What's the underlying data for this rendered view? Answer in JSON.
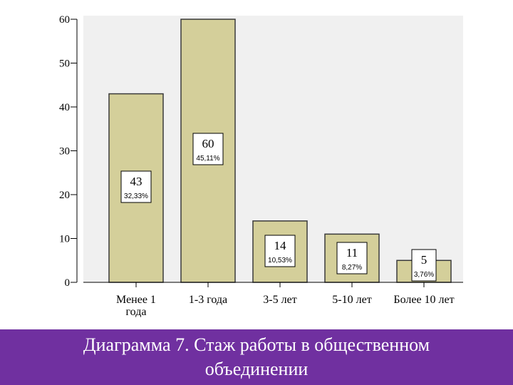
{
  "chart_data": {
    "type": "bar",
    "categories": [
      [
        "Менее 1",
        "года"
      ],
      [
        "1-3 года"
      ],
      [
        "3-5 лет"
      ],
      [
        "5-10 лет"
      ],
      [
        "Более 10 лет"
      ]
    ],
    "values": [
      43,
      60,
      14,
      11,
      5
    ],
    "data_labels": [
      "43",
      "60",
      "14",
      "11",
      "5"
    ],
    "percent_labels": [
      "32,33%",
      "45,11%",
      "10,53%",
      "8,27%",
      "3,76%"
    ],
    "yticks": [
      0,
      10,
      20,
      30,
      40,
      50,
      60
    ],
    "ylim": [
      0,
      60
    ],
    "grid": false,
    "colors": {
      "bar": "#d4cf9a",
      "bar_stroke": "#3a3a3a",
      "plot_bg": "#f0f0f0"
    }
  },
  "caption": {
    "text": "Диаграмма 7. Стаж работы в общественном объединении",
    "background": "#7030a0"
  }
}
